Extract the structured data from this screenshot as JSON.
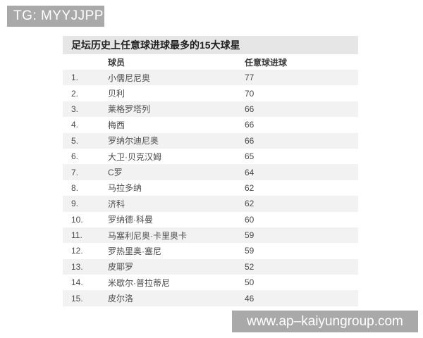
{
  "watermarks": {
    "top": "TG: MYYJJPP",
    "bottom": "www.ap–kaiyungroup.com"
  },
  "table": {
    "title": "足坛历史上任意球进球最多的15大球星",
    "columns": {
      "player": "球员",
      "goals": "任意球进球"
    },
    "rows": [
      {
        "rank": "1.",
        "player": "小儒尼尼奥",
        "goals": "77"
      },
      {
        "rank": "2.",
        "player": "贝利",
        "goals": "70"
      },
      {
        "rank": "3.",
        "player": "莱格罗塔列",
        "goals": "66"
      },
      {
        "rank": "4.",
        "player": "梅西",
        "goals": "66"
      },
      {
        "rank": "5.",
        "player": "罗纳尔迪尼奥",
        "goals": "66"
      },
      {
        "rank": "6.",
        "player": "大卫·贝克汉姆",
        "goals": "65"
      },
      {
        "rank": "7.",
        "player": "C罗",
        "goals": "64"
      },
      {
        "rank": "8.",
        "player": "马拉多纳",
        "goals": "62"
      },
      {
        "rank": "9.",
        "player": "济科",
        "goals": "62"
      },
      {
        "rank": "10.",
        "player": "罗纳德·科曼",
        "goals": "60"
      },
      {
        "rank": "11.",
        "player": "马塞利尼奥·卡里奥卡",
        "goals": "59"
      },
      {
        "rank": "12.",
        "player": "罗热里奥·塞尼",
        "goals": "59"
      },
      {
        "rank": "13.",
        "player": "皮耶罗",
        "goals": "52"
      },
      {
        "rank": "14.",
        "player": "米歇尔·普拉蒂尼",
        "goals": "50"
      },
      {
        "rank": "15.",
        "player": "皮尔洛",
        "goals": "46"
      }
    ]
  },
  "colors": {
    "watermark_bg": "#a9a9a9",
    "watermark_text": "#ffffff",
    "title_bg": "#e6e6e6",
    "row_stripe_bg": "#f2f2f2",
    "row_text": "#4b4b4b",
    "title_text": "#1f1f1f"
  }
}
